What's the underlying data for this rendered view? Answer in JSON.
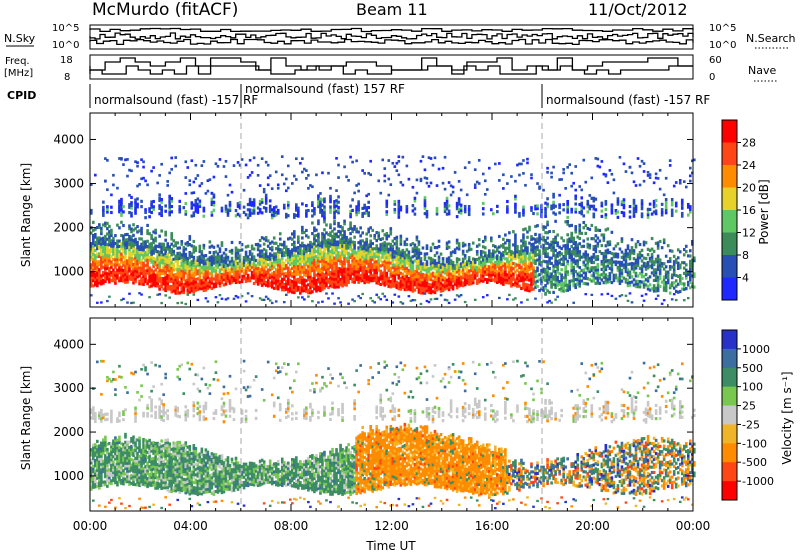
{
  "header": {
    "station": "McMurdo (fitACF)",
    "beam": "Beam 11",
    "date": "11/Oct/2012"
  },
  "summary_panels": {
    "nsky": {
      "left_label": "N.Sky",
      "left_ticks": [
        "10^5",
        "10^0"
      ],
      "right_label": "N.Search",
      "right_ticks": [
        "10^5",
        "10^0"
      ]
    },
    "freq": {
      "left_label_line1": "Freq.",
      "left_label_line2": "[MHz]",
      "left_ticks": [
        "18",
        "8"
      ],
      "right_label": "Nave",
      "right_ticks": [
        "60",
        "0"
      ]
    },
    "cpid": {
      "label": "CPID",
      "segments": [
        {
          "text": "normalsound (fast) -157 RF",
          "start_hour": 0,
          "end_hour": 6
        },
        {
          "text": "normalsound (fast) 157 RF",
          "start_hour": 6,
          "end_hour": 18
        },
        {
          "text": "normalsound (fast) -157 RF",
          "start_hour": 18,
          "end_hour": 24
        }
      ]
    }
  },
  "chart_data": [
    {
      "type": "heatmap",
      "name": "power",
      "xlabel": "",
      "ylabel": "Slant Range [km]",
      "x_range_hours": [
        0,
        24
      ],
      "ylim": [
        200,
        4600
      ],
      "y_ticks": [
        1000,
        2000,
        3000,
        4000
      ],
      "colorbar": {
        "label": "Power [dB]",
        "ticks": [
          "4",
          "8",
          "12",
          "16",
          "20",
          "24",
          "28"
        ],
        "colors": [
          "#1e28ff",
          "#2850b4",
          "#3c8c5a",
          "#5fc864",
          "#e6d228",
          "#ff8c00",
          "#ff4614",
          "#ff0000"
        ]
      },
      "bands": [
        {
          "range_km": [
            600,
            1300
          ],
          "strength": "strong",
          "hours": [
            0,
            17.5
          ]
        },
        {
          "range_km": [
            800,
            1700
          ],
          "strength": "moderate",
          "hours": [
            0,
            24
          ]
        },
        {
          "range_km": [
            2200,
            2600
          ],
          "strength": "weak",
          "hours": [
            0,
            24
          ]
        },
        {
          "range_km": [
            2800,
            3600
          ],
          "strength": "sparse",
          "hours": [
            0,
            24
          ]
        }
      ]
    },
    {
      "type": "heatmap",
      "name": "velocity",
      "xlabel": "Time UT",
      "ylabel": "Slant Range [km]",
      "x_range_hours": [
        0,
        24
      ],
      "x_ticks": [
        "00:00",
        "04:00",
        "08:00",
        "12:00",
        "16:00",
        "20:00",
        "00:00"
      ],
      "ylim": [
        200,
        4600
      ],
      "y_ticks": [
        1000,
        2000,
        3000,
        4000
      ],
      "colorbar": {
        "label": "Velocity [m s⁻¹]",
        "ticks": [
          "1000",
          "500",
          "100",
          "25",
          "-25",
          "-100",
          "-500",
          "-1000"
        ],
        "colors": [
          "#2832c8",
          "#3c6ea0",
          "#3c8c64",
          "#78c850",
          "#c8c8c8",
          "#f0b428",
          "#ff8c00",
          "#ff4614",
          "#ff0000"
        ]
      },
      "bands": [
        {
          "range_km": [
            700,
            1500
          ],
          "velocity": "toward (green)",
          "hours": [
            0,
            10.5
          ]
        },
        {
          "range_km": [
            900,
            1700
          ],
          "velocity": "away (orange)",
          "hours": [
            10.5,
            16.5
          ]
        },
        {
          "range_km": [
            700,
            1600
          ],
          "velocity": "mixed",
          "hours": [
            16.5,
            24
          ]
        },
        {
          "range_km": [
            2200,
            2600
          ],
          "velocity": "near zero (grey)",
          "hours": [
            0,
            24
          ]
        }
      ]
    }
  ]
}
